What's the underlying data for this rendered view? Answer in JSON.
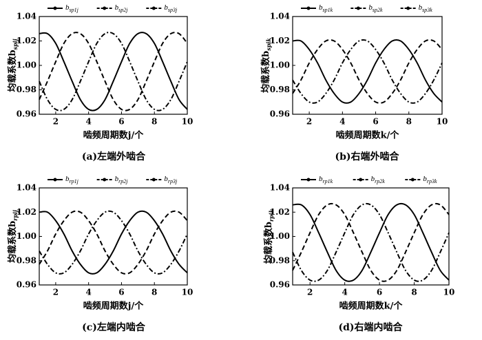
{
  "chart_data": [
    {
      "type": "line",
      "caption": "(a)左端外啮合",
      "xlabel": "啮频周期数j/个",
      "ylabel": "均载系数bspij",
      "x": [
        1,
        1.5,
        2,
        2.5,
        3,
        3.5,
        4,
        4.5,
        5,
        5.5,
        6,
        6.5,
        7,
        7.5,
        8,
        8.5,
        9,
        9.5,
        10
      ],
      "xlim": [
        1,
        10
      ],
      "xticks": [
        2,
        4,
        6,
        8,
        10
      ],
      "ylim": [
        0.96,
        1.04
      ],
      "yticks": [
        0.96,
        0.98,
        {
          "value": 1,
          "label": "1.00"
        },
        1.02,
        1.04
      ],
      "series": [
        {
          "name": "bsp1j",
          "color": "#000",
          "style": "solid",
          "values": [
            1.026,
            1.026,
            1.018,
            1.003,
            0.987,
            0.972,
            0.964,
            0.964,
            0.972,
            0.987,
            1.003,
            1.018,
            1.026,
            1.026,
            1.018,
            1.003,
            0.987,
            0.972,
            0.964
          ]
        },
        {
          "name": "bsp2j",
          "color": "#000",
          "style": "dashed",
          "values": [
            0.972,
            0.987,
            1.003,
            1.018,
            1.026,
            1.026,
            1.018,
            1.003,
            0.987,
            0.972,
            0.964,
            0.964,
            0.972,
            0.987,
            1.003,
            1.018,
            1.026,
            1.026,
            1.018
          ]
        },
        {
          "name": "bsp3j",
          "color": "#000",
          "style": "dashdot",
          "values": [
            0.987,
            0.972,
            0.964,
            0.964,
            0.972,
            0.987,
            1.003,
            1.018,
            1.026,
            1.026,
            1.018,
            1.003,
            0.987,
            0.972,
            0.964,
            0.964,
            0.972,
            0.987,
            1.003
          ]
        }
      ]
    },
    {
      "type": "line",
      "caption": "(b)右端外啮合",
      "xlabel": "啮频周期数k/个",
      "ylabel": "均载系数bspik",
      "x": [
        1,
        1.5,
        2,
        2.5,
        3,
        3.5,
        4,
        4.5,
        5,
        5.5,
        6,
        6.5,
        7,
        7.5,
        8,
        8.5,
        9,
        9.5,
        10
      ],
      "xlim": [
        1,
        10
      ],
      "xticks": [
        2,
        4,
        6,
        8,
        10
      ],
      "ylim": [
        0.96,
        1.04
      ],
      "yticks": [
        0.96,
        0.98,
        {
          "value": 1,
          "label": "1.00"
        },
        1.02,
        1.04
      ],
      "series": [
        {
          "name": "bsp1k",
          "color": "#000",
          "style": "solid",
          "values": [
            1.02,
            1.02,
            1.013,
            1.002,
            0.988,
            0.977,
            0.97,
            0.97,
            0.977,
            0.988,
            1.002,
            1.013,
            1.02,
            1.02,
            1.013,
            1.002,
            0.988,
            0.977,
            0.97
          ]
        },
        {
          "name": "bsp2k",
          "color": "#000",
          "style": "dashed",
          "values": [
            0.977,
            0.988,
            1.002,
            1.013,
            1.02,
            1.02,
            1.013,
            1.002,
            0.988,
            0.977,
            0.97,
            0.97,
            0.977,
            0.988,
            1.002,
            1.013,
            1.02,
            1.02,
            1.013
          ]
        },
        {
          "name": "bsp3k",
          "color": "#000",
          "style": "dashdot",
          "values": [
            0.988,
            0.977,
            0.97,
            0.97,
            0.977,
            0.988,
            1.002,
            1.013,
            1.02,
            1.02,
            1.013,
            1.002,
            0.988,
            0.977,
            0.97,
            0.97,
            0.977,
            0.988,
            1.002
          ]
        }
      ]
    },
    {
      "type": "line",
      "caption": "(c)左端内啮合",
      "xlabel": "啮频周期数j/个",
      "ylabel": "均载系数brpij",
      "x": [
        1,
        1.5,
        2,
        2.5,
        3,
        3.5,
        4,
        4.5,
        5,
        5.5,
        6,
        6.5,
        7,
        7.5,
        8,
        8.5,
        9,
        9.5,
        10
      ],
      "xlim": [
        1,
        10
      ],
      "xticks": [
        2,
        4,
        6,
        8,
        10
      ],
      "ylim": [
        0.96,
        1.04
      ],
      "yticks": [
        0.96,
        0.98,
        {
          "value": 1,
          "label": "1.00"
        },
        1.02,
        1.04
      ],
      "series": [
        {
          "name": "brp1j",
          "color": "#000",
          "style": "solid",
          "values": [
            1.02,
            1.02,
            1.013,
            1.002,
            0.988,
            0.977,
            0.97,
            0.97,
            0.977,
            0.988,
            1.002,
            1.013,
            1.02,
            1.02,
            1.013,
            1.002,
            0.988,
            0.977,
            0.97
          ]
        },
        {
          "name": "brp2j",
          "color": "#000",
          "style": "dashed",
          "values": [
            0.977,
            0.988,
            1.002,
            1.013,
            1.02,
            1.02,
            1.013,
            1.002,
            0.988,
            0.977,
            0.97,
            0.97,
            0.977,
            0.988,
            1.002,
            1.013,
            1.02,
            1.02,
            1.013
          ]
        },
        {
          "name": "brp3j",
          "color": "#000",
          "style": "dashdot",
          "values": [
            0.988,
            0.977,
            0.97,
            0.97,
            0.977,
            0.988,
            1.002,
            1.013,
            1.02,
            1.02,
            1.013,
            1.002,
            0.988,
            0.977,
            0.97,
            0.97,
            0.977,
            0.988,
            1.002
          ]
        }
      ]
    },
    {
      "type": "line",
      "caption": "(d)右端内啮合",
      "xlabel": "啮频周期数k/个",
      "ylabel": "均载系数brpik",
      "x": [
        1,
        1.5,
        2,
        2.5,
        3,
        3.5,
        4,
        4.5,
        5,
        5.5,
        6,
        6.5,
        7,
        7.5,
        8,
        8.5,
        9,
        9.5,
        10
      ],
      "xlim": [
        1,
        10
      ],
      "xticks": [
        2,
        4,
        6,
        8,
        10
      ],
      "ylim": [
        0.96,
        1.04
      ],
      "yticks": [
        0.96,
        0.98,
        {
          "value": 1,
          "label": "1.00"
        },
        1.02,
        1.04
      ],
      "series": [
        {
          "name": "brp1k",
          "color": "#000",
          "style": "solid",
          "values": [
            1.026,
            1.026,
            1.018,
            1.003,
            0.987,
            0.972,
            0.964,
            0.964,
            0.972,
            0.987,
            1.003,
            1.018,
            1.026,
            1.026,
            1.018,
            1.003,
            0.987,
            0.972,
            0.964
          ]
        },
        {
          "name": "brp2k",
          "color": "#000",
          "style": "dashed",
          "values": [
            0.972,
            0.987,
            1.003,
            1.018,
            1.026,
            1.026,
            1.018,
            1.003,
            0.987,
            0.972,
            0.964,
            0.964,
            0.972,
            0.987,
            1.003,
            1.018,
            1.026,
            1.026,
            1.018
          ]
        },
        {
          "name": "brp3k",
          "color": "#000",
          "style": "dashdot",
          "values": [
            0.987,
            0.972,
            0.964,
            0.964,
            0.972,
            0.987,
            1.003,
            1.018,
            1.026,
            1.026,
            1.018,
            1.003,
            0.987,
            0.972,
            0.964,
            0.964,
            0.972,
            0.987,
            1.003
          ]
        }
      ]
    }
  ]
}
